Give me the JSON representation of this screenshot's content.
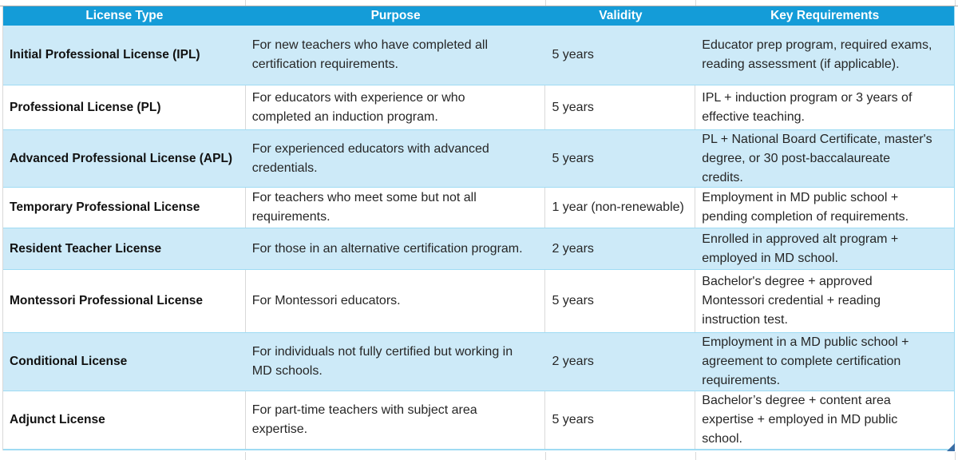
{
  "table": {
    "columns": [
      {
        "label": "License Type"
      },
      {
        "label": "Purpose"
      },
      {
        "label": "Validity"
      },
      {
        "label": "Key Requirements"
      }
    ],
    "rows": [
      {
        "license": "Initial Professional License (IPL)",
        "purpose": "For new teachers who have completed all\ncertification requirements.",
        "validity": "5 years",
        "requirements": "Educator prep program, required exams,\nreading assessment (if applicable)."
      },
      {
        "license": "Professional License (PL)",
        "purpose": "For educators with experience or who\ncompleted an induction program.",
        "validity": "5 years",
        "requirements": "IPL + induction program or 3 years of\neffective teaching."
      },
      {
        "license": "Advanced Professional License (APL)",
        "purpose": "For experienced educators with advanced\ncredentials.",
        "validity": "5 years",
        "requirements": "PL + National Board Certificate, master's\ndegree, or 30 post-baccalaureate\ncredits."
      },
      {
        "license": "Temporary Professional License",
        "purpose": "For teachers who meet some but not all\nrequirements.",
        "validity": "1 year (non-renewable)",
        "requirements": "Employment in MD public school +\npending completion of requirements."
      },
      {
        "license": "Resident Teacher License",
        "purpose": "For those in an alternative certification program.",
        "validity": "2 years",
        "requirements": "Enrolled in approved alt program +\nemployed in MD school."
      },
      {
        "license": "Montessori Professional License",
        "purpose": "For Montessori educators.",
        "validity": "5 years",
        "requirements": "Bachelor's degree + approved\nMontessori credential + reading\ninstruction test."
      },
      {
        "license": "Conditional License",
        "purpose": "For individuals not fully certified but working in\nMD schools.",
        "validity": "2 years",
        "requirements": "Employment in a MD public school +\nagreement to complete certification\nrequirements."
      },
      {
        "license": "Adjunct License",
        "purpose": "For part-time teachers with subject area\nexpertise.",
        "validity": "5 years",
        "requirements": "Bachelor’s degree + content area\nexpertise + employed in MD public\nschool."
      }
    ]
  },
  "colors": {
    "header_bg": "#149cd8",
    "header_text": "#ffffff",
    "alt_row_bg": "#cdeaf8",
    "row_border": "#9fdbf3",
    "gridline": "#d9d9d9",
    "resize_handle": "#3a6ea5"
  }
}
